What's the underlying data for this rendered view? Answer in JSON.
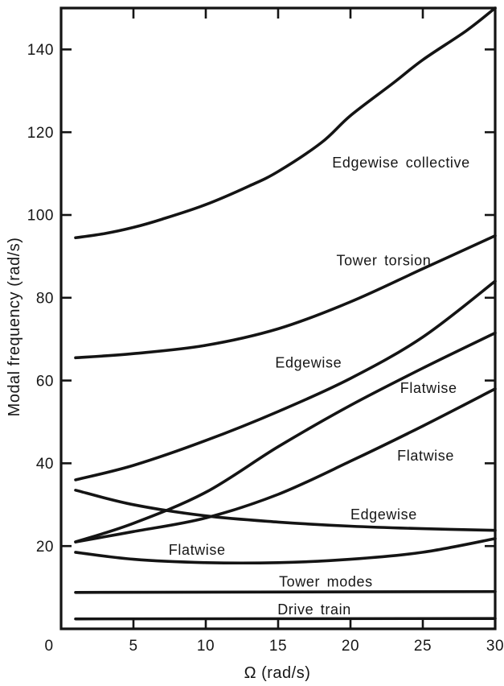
{
  "figure": {
    "background_color": "#ffffff",
    "ink_color": "#141414"
  },
  "chart_data": {
    "type": "line",
    "title": "",
    "xlabel": "Ω (rad/s)",
    "ylabel": "Modal frequency (rad/s)",
    "xlim": [
      0,
      30
    ],
    "ylim": [
      0,
      150
    ],
    "x_ticks": [
      0,
      5,
      10,
      15,
      20,
      25,
      30
    ],
    "y_ticks": [
      20,
      40,
      60,
      80,
      100,
      120,
      140
    ],
    "grid": false,
    "legend": "inline-annotations",
    "series": [
      {
        "name": "Edgewise collective",
        "x": [
          1,
          3,
          5,
          7,
          10,
          13,
          15,
          18,
          20,
          23,
          25,
          28,
          30
        ],
        "y": [
          94.5,
          95.5,
          97,
          99,
          102.5,
          107,
          110.5,
          117.5,
          124,
          132,
          137.5,
          144.5,
          150
        ]
      },
      {
        "name": "Tower torsion",
        "x": [
          1,
          5,
          10,
          15,
          20,
          25,
          30
        ],
        "y": [
          65.5,
          66.5,
          68.5,
          72.5,
          79,
          87,
          95
        ]
      },
      {
        "name": "Edgewise",
        "x": [
          1,
          5,
          10,
          15,
          20,
          25,
          30
        ],
        "y": [
          36,
          39.5,
          45.5,
          52.5,
          60.5,
          70.5,
          84
        ]
      },
      {
        "name": "Flatwise",
        "x": [
          1,
          5,
          10,
          15,
          20,
          25,
          30
        ],
        "y": [
          21,
          25.5,
          33,
          44,
          54,
          63,
          71.5
        ]
      },
      {
        "name": "Flatwise",
        "x": [
          1,
          5,
          10,
          15,
          20,
          25,
          30
        ],
        "y": [
          21,
          23.5,
          26.8,
          32.5,
          40.5,
          49,
          58
        ]
      },
      {
        "name": "Edgewise",
        "x": [
          1,
          5,
          10,
          15,
          20,
          25,
          30
        ],
        "y": [
          33.5,
          30,
          27.3,
          25.8,
          24.8,
          24.2,
          23.8
        ]
      },
      {
        "name": "Flatwise",
        "x": [
          1,
          5,
          10,
          15,
          20,
          25,
          30
        ],
        "y": [
          18.5,
          16.8,
          16,
          16,
          16.8,
          18.5,
          21.8
        ]
      },
      {
        "name": "Tower modes",
        "x": [
          1,
          30
        ],
        "y": [
          8.8,
          9.0
        ]
      },
      {
        "name": "Drive train",
        "x": [
          1,
          30
        ],
        "y": [
          2.4,
          2.5
        ]
      }
    ],
    "annotations": [
      {
        "text": "Edgewise collective",
        "x": 23.5,
        "y": 112.6
      },
      {
        "text": "Tower torsion",
        "x": 22.3,
        "y": 89.0
      },
      {
        "text": "Edgewise",
        "x": 17.1,
        "y": 64.3
      },
      {
        "text": "Flatwise",
        "x": 25.4,
        "y": 58.2
      },
      {
        "text": "Flatwise",
        "x": 25.2,
        "y": 41.8
      },
      {
        "text": "Edgewise",
        "x": 22.3,
        "y": 27.6
      },
      {
        "text": "Flatwise",
        "x": 9.4,
        "y": 19.1
      },
      {
        "text": "Tower modes",
        "x": 18.3,
        "y": 11.4
      },
      {
        "text": "Drive train",
        "x": 17.5,
        "y": 4.7
      }
    ]
  }
}
